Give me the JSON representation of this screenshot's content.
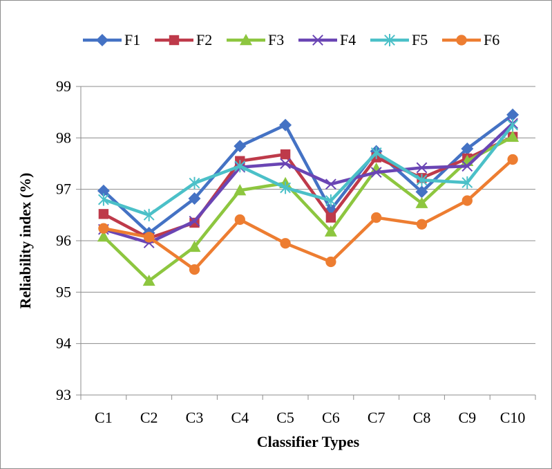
{
  "chart_data": {
    "type": "line",
    "title": "",
    "xlabel": "Classifier Types",
    "ylabel": "Reliability index (%)",
    "ylim": [
      93,
      99
    ],
    "yticks": [
      "93",
      "94",
      "95",
      "96",
      "97",
      "98",
      "99"
    ],
    "grid": true,
    "legend_position": "top",
    "categories": [
      "C1",
      "C2",
      "C3",
      "C4",
      "C5",
      "C6",
      "C7",
      "C8",
      "C9",
      "C10"
    ],
    "series": [
      {
        "name": "F1",
        "color": "#4472C4",
        "marker": "diamond",
        "values": [
          96.97,
          96.15,
          96.82,
          97.84,
          98.25,
          96.6,
          97.74,
          96.95,
          97.79,
          98.45
        ]
      },
      {
        "name": "F2",
        "color": "#BE3A4A",
        "marker": "square",
        "values": [
          96.52,
          96.05,
          96.35,
          97.55,
          97.68,
          96.45,
          97.62,
          97.22,
          97.6,
          98.02
        ]
      },
      {
        "name": "F3",
        "color": "#8DC63F",
        "marker": "triangle",
        "values": [
          96.08,
          95.22,
          95.88,
          96.98,
          97.12,
          96.18,
          97.4,
          96.73,
          97.55,
          98.02
        ]
      },
      {
        "name": "F4",
        "color": "#6A45B4",
        "marker": "x",
        "values": [
          96.22,
          95.96,
          96.38,
          97.43,
          97.5,
          97.1,
          97.33,
          97.42,
          97.45,
          98.28
        ]
      },
      {
        "name": "F5",
        "color": "#4BC0C8",
        "marker": "star",
        "values": [
          96.8,
          96.5,
          97.12,
          97.45,
          97.03,
          96.78,
          97.71,
          97.18,
          97.13,
          98.25
        ]
      },
      {
        "name": "F6",
        "color": "#ED7D31",
        "marker": "circle",
        "values": [
          96.24,
          96.07,
          95.44,
          96.41,
          95.95,
          95.59,
          96.45,
          96.32,
          96.78,
          97.58
        ]
      }
    ]
  }
}
